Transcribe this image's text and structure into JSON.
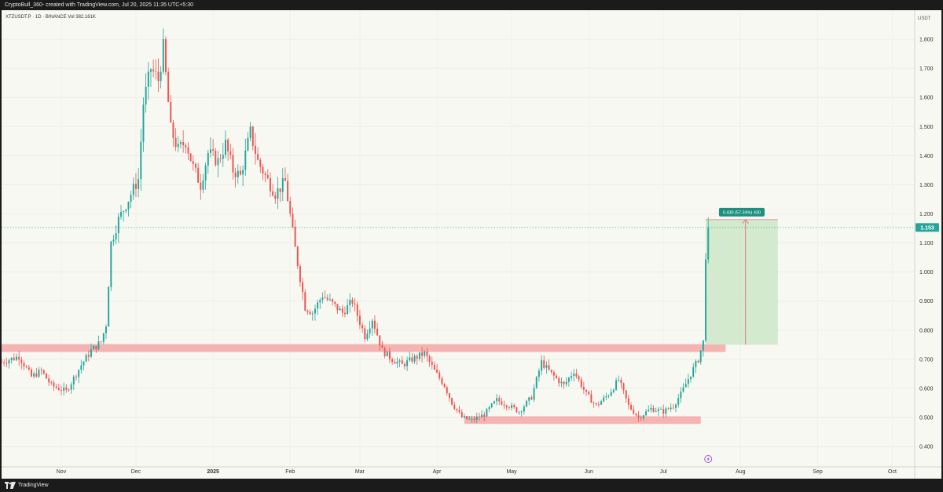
{
  "header": {
    "caption": "CryptoBull_360- created with TradingView.com, Jul 20, 2025 11:35 UTC+5:30"
  },
  "chart": {
    "symbol_line": "XTZUSDT.P · 1D · BINANCE  Vol 382.161K",
    "currency": "USDT",
    "current_price_label": "1.153",
    "measure_label": "0.430 (57.34%) 430",
    "footer_brand": "TradingView",
    "colors": {
      "background": "#f7f8f2",
      "up": "#26a69a",
      "down": "#ef5350",
      "zone": "#f4a7a7",
      "target_box": "#c9e6c4",
      "badge": "#26a69a"
    }
  },
  "chart_data": {
    "type": "candlestick",
    "title": "XTZUSDT.P · 1D · BINANCE",
    "y_ticks": [
      "1.800",
      "1.700",
      "1.600",
      "1.500",
      "1.400",
      "1.300",
      "1.200",
      "1.100",
      "1.000",
      "0.900",
      "0.800",
      "0.700",
      "0.600",
      "0.500",
      "0.400"
    ],
    "y_tick_values": [
      1.8,
      1.7,
      1.6,
      1.5,
      1.4,
      1.3,
      1.2,
      1.1,
      1.0,
      0.9,
      0.8,
      0.7,
      0.6,
      0.5,
      0.4
    ],
    "ylim": [
      0.33,
      1.9
    ],
    "x_ticks": [
      "Nov",
      "Dec",
      "2025",
      "Feb",
      "Mar",
      "Apr",
      "May",
      "Jun",
      "Jul",
      "Aug",
      "Sep",
      "Oct"
    ],
    "x_tick_dates": [
      "2024-11-01",
      "2024-12-01",
      "2025-01-01",
      "2025-02-01",
      "2025-03-01",
      "2025-04-01",
      "2025-05-01",
      "2025-06-01",
      "2025-07-01",
      "2025-08-01",
      "2025-09-01",
      "2025-10-01"
    ],
    "xlim": [
      "2024-10-08",
      "2025-10-10"
    ],
    "last_price": 1.153,
    "zones": [
      {
        "from": "2024-10-08",
        "to": "2025-07-26",
        "low": 0.725,
        "high": 0.752
      },
      {
        "from": "2025-04-12",
        "to": "2025-07-16",
        "low": 0.478,
        "high": 0.504
      }
    ],
    "target_box": {
      "from": "2025-07-18",
      "to": "2025-08-16",
      "low": 0.75,
      "high": 1.18
    },
    "measure": {
      "date": "2025-08-03",
      "from": 0.75,
      "to": 1.18,
      "label": "0.430 (57.34%) 430"
    },
    "ohlc_waypoints": [
      [
        "2024-10-08",
        0.69
      ],
      [
        "2024-10-15",
        0.71
      ],
      [
        "2024-10-20",
        0.64
      ],
      [
        "2024-10-24",
        0.66
      ],
      [
        "2024-10-28",
        0.61
      ],
      [
        "2024-11-03",
        0.59
      ],
      [
        "2024-11-09",
        0.68
      ],
      [
        "2024-11-13",
        0.73
      ],
      [
        "2024-11-17",
        0.76
      ],
      [
        "2024-11-19",
        0.82
      ],
      [
        "2024-11-21",
        1.1
      ],
      [
        "2024-11-24",
        1.18
      ],
      [
        "2024-11-28",
        1.25
      ],
      [
        "2024-12-02",
        1.32
      ],
      [
        "2024-12-04",
        1.58
      ],
      [
        "2024-12-07",
        1.7
      ],
      [
        "2024-12-10",
        1.66
      ],
      [
        "2024-12-12",
        1.77
      ],
      [
        "2024-12-15",
        1.49
      ],
      [
        "2024-12-18",
        1.42
      ],
      [
        "2024-12-21",
        1.45
      ],
      [
        "2024-12-24",
        1.36
      ],
      [
        "2024-12-27",
        1.3
      ],
      [
        "2024-12-30",
        1.41
      ],
      [
        "2025-01-03",
        1.38
      ],
      [
        "2025-01-06",
        1.44
      ],
      [
        "2025-01-09",
        1.35
      ],
      [
        "2025-01-12",
        1.33
      ],
      [
        "2025-01-16",
        1.48
      ],
      [
        "2025-01-19",
        1.38
      ],
      [
        "2025-01-22",
        1.33
      ],
      [
        "2025-01-26",
        1.27
      ],
      [
        "2025-01-30",
        1.31
      ],
      [
        "2025-02-03",
        1.08
      ],
      [
        "2025-02-07",
        0.88
      ],
      [
        "2025-02-10",
        0.86
      ],
      [
        "2025-02-14",
        0.92
      ],
      [
        "2025-02-18",
        0.89
      ],
      [
        "2025-02-22",
        0.86
      ],
      [
        "2025-02-26",
        0.9
      ],
      [
        "2025-03-03",
        0.78
      ],
      [
        "2025-03-06",
        0.84
      ],
      [
        "2025-03-10",
        0.73
      ],
      [
        "2025-03-14",
        0.7
      ],
      [
        "2025-03-18",
        0.68
      ],
      [
        "2025-03-22",
        0.7
      ],
      [
        "2025-03-27",
        0.72
      ],
      [
        "2025-03-31",
        0.66
      ],
      [
        "2025-04-04",
        0.61
      ],
      [
        "2025-04-07",
        0.55
      ],
      [
        "2025-04-11",
        0.5
      ],
      [
        "2025-04-15",
        0.49
      ],
      [
        "2025-04-20",
        0.51
      ],
      [
        "2025-04-25",
        0.56
      ],
      [
        "2025-04-30",
        0.54
      ],
      [
        "2025-05-04",
        0.52
      ],
      [
        "2025-05-09",
        0.57
      ],
      [
        "2025-05-13",
        0.69
      ],
      [
        "2025-05-17",
        0.65
      ],
      [
        "2025-05-22",
        0.61
      ],
      [
        "2025-05-26",
        0.66
      ],
      [
        "2025-05-31",
        0.58
      ],
      [
        "2025-06-04",
        0.54
      ],
      [
        "2025-06-09",
        0.58
      ],
      [
        "2025-06-13",
        0.63
      ],
      [
        "2025-06-17",
        0.54
      ],
      [
        "2025-06-21",
        0.5
      ],
      [
        "2025-06-26",
        0.53
      ],
      [
        "2025-07-01",
        0.52
      ],
      [
        "2025-07-05",
        0.54
      ],
      [
        "2025-07-08",
        0.58
      ],
      [
        "2025-07-12",
        0.65
      ],
      [
        "2025-07-15",
        0.7
      ],
      [
        "2025-07-17",
        0.76
      ],
      [
        "2025-07-18",
        1.06
      ],
      [
        "2025-07-19",
        1.153
      ]
    ]
  }
}
